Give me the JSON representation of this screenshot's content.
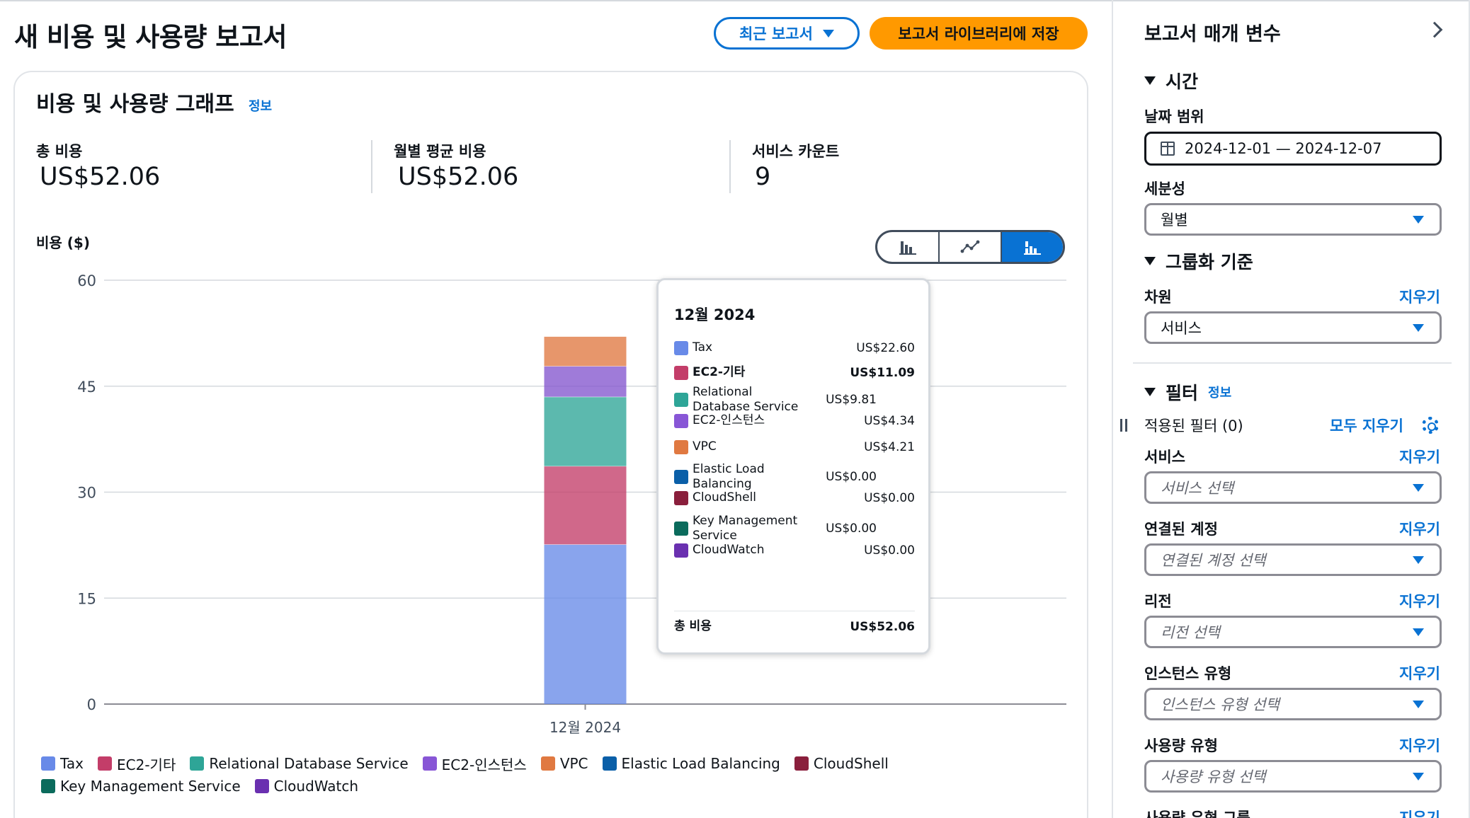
{
  "header": {
    "title": "새 비용 및 사용량 보고서",
    "recent_reports_label": "최근 보고서",
    "save_label": "보고서 라이브러리에 저장"
  },
  "main": {
    "title": "비용 및 사용량 그래프",
    "info_label": "정보",
    "kpis": [
      {
        "label": "총 비용",
        "value": "US$52.06"
      },
      {
        "label": "월별 평균 비용",
        "value": "US$52.06"
      },
      {
        "label": "서비스 카운트",
        "value": "9"
      }
    ],
    "y_axis_title": "비용 ($)",
    "chart_toggle": [
      "bar-chart-icon",
      "line-chart-icon",
      "stacked-bar-chart-icon"
    ]
  },
  "chart_data": {
    "type": "bar",
    "stacked": true,
    "categories": [
      "12월 2024"
    ],
    "ylim": [
      0,
      60
    ],
    "yticks": [
      0,
      15,
      30,
      45,
      60
    ],
    "ylabel": "비용 ($)",
    "grid": true,
    "series": [
      {
        "name": "Tax",
        "values": [
          22.6
        ],
        "color": "#688ae8"
      },
      {
        "name": "EC2-기타",
        "values": [
          11.09
        ],
        "color": "#c33d69"
      },
      {
        "name": "Relational Database Service",
        "values": [
          9.81
        ],
        "color": "#2ea597"
      },
      {
        "name": "EC2-인스턴스",
        "values": [
          4.34
        ],
        "color": "#8456ce"
      },
      {
        "name": "VPC",
        "values": [
          4.21
        ],
        "color": "#e07941"
      },
      {
        "name": "Elastic Load Balancing",
        "values": [
          0.0
        ],
        "color": "#3759ce"
      },
      {
        "name": "CloudShell",
        "values": [
          0.0
        ],
        "color": "#962249"
      },
      {
        "name": "Key Management Service",
        "values": [
          0.0
        ],
        "color": "#096f64"
      },
      {
        "name": "CloudWatch",
        "values": [
          0.0
        ],
        "color": "#6237a7"
      }
    ]
  },
  "legend_colors": {
    "Elastic Load Balancing": "#0a5fa8",
    "CloudShell": "#8a1f3c",
    "Key Management Service": "#0b6b5c",
    "CloudWatch": "#6a30b0",
    "EC2-인스턴스": "#8856d6"
  },
  "tooltip": {
    "title": "12월 2024",
    "rows": [
      {
        "name": "Tax",
        "value": "US$22.60",
        "bold": false
      },
      {
        "name": "EC2-기타",
        "value": "US$11.09",
        "bold": true
      },
      {
        "name": "Relational Database Service",
        "value": "US$9.81",
        "bold": false
      },
      {
        "name": "EC2-인스턴스",
        "value": "US$4.34",
        "bold": false
      },
      {
        "name": "VPC",
        "value": "US$4.21",
        "bold": false
      },
      {
        "name": "Elastic Load Balancing",
        "value": "US$0.00",
        "bold": false
      },
      {
        "name": "CloudShell",
        "value": "US$0.00",
        "bold": false
      },
      {
        "name": "Key Management Service",
        "value": "US$0.00",
        "bold": false
      },
      {
        "name": "CloudWatch",
        "value": "US$0.00",
        "bold": false
      }
    ],
    "total_label": "총 비용",
    "total_value": "US$52.06"
  },
  "panel": {
    "title": "보고서 매개 변수",
    "time_section": "시간",
    "date_range_label": "날짜 범위",
    "date_range_value": "2024-12-01 — 2024-12-07",
    "granularity_label": "세분성",
    "granularity_value": "월별",
    "group_section": "그룹화 기준",
    "dimension_label": "차원",
    "dimension_value": "서비스",
    "clear_label": "지우기",
    "filter_section": "필터",
    "filter_info": "정보",
    "applied_filters": "적용된 필터 (0)",
    "clear_all": "모두 지우기",
    "filters": [
      {
        "label": "서비스",
        "placeholder": "서비스 선택"
      },
      {
        "label": "연결된 계정",
        "placeholder": "연결된 계정 선택"
      },
      {
        "label": "리전",
        "placeholder": "리전 선택"
      },
      {
        "label": "인스턴스 유형",
        "placeholder": "인스턴스 유형 선택"
      },
      {
        "label": "사용량 유형",
        "placeholder": "사용량 유형 선택"
      },
      {
        "label": "사용량 유형 그룹",
        "placeholder": ""
      }
    ]
  },
  "colors": {
    "accent": "#0972d3",
    "primary_button": "#ff9900",
    "border": "#d5d9de"
  }
}
